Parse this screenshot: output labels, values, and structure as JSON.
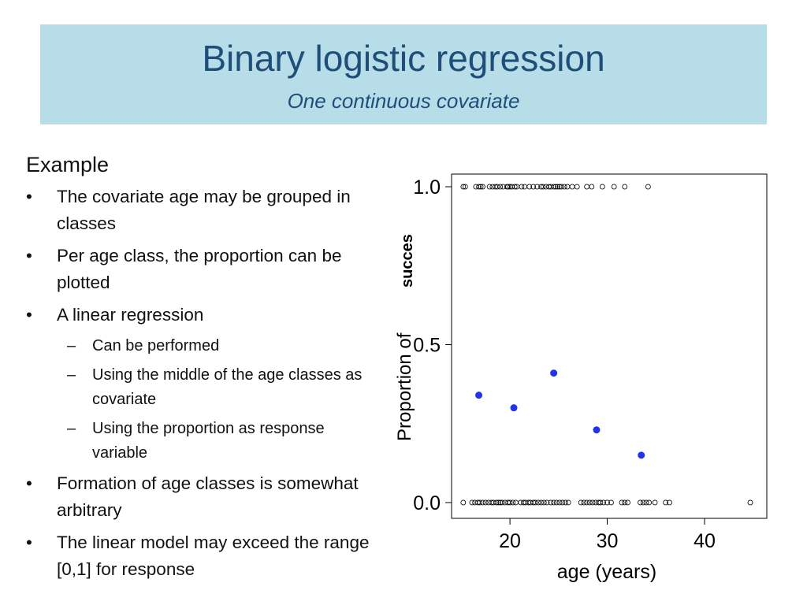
{
  "slide": {
    "title": "Binary logistic regression",
    "subtitle": "One continuous covariate",
    "heading": "Example",
    "bullets": [
      {
        "text": "The covariate age may be grouped in classes"
      },
      {
        "text": "Per age class, the proportion can be plotted"
      },
      {
        "text": "A linear regression",
        "subs": [
          "Can be performed",
          "Using the middle of the age classes as covariate",
          "Using the proportion as response variable"
        ]
      },
      {
        "text": "Formation of age classes is somewhat arbitrary"
      },
      {
        "text": "The linear model may exceed the range [0,1] for response"
      }
    ]
  },
  "chart_data": {
    "type": "scatter",
    "xlabel": "age (years)",
    "ylabel_plain": "Proportion of",
    "ylabel_bold": "succes",
    "xticks": [
      20,
      30,
      40
    ],
    "yticks": [
      "0.0",
      "0.5",
      "1.0"
    ],
    "xlim": [
      14,
      46.4
    ],
    "ylim": [
      -0.05,
      1.04
    ],
    "series": [
      {
        "kind": "outcome_points",
        "points_y1": [
          15.2,
          15.4,
          16.5,
          16.8,
          17.0,
          17.2,
          17.9,
          18.2,
          18.5,
          18.7,
          19.0,
          19.3,
          19.7,
          19.8,
          20.0,
          20.2,
          20.5,
          20.7,
          21.2,
          21.5,
          22.0,
          22.4,
          22.8,
          23.2,
          23.4,
          23.7,
          24.0,
          24.2,
          24.5,
          24.7,
          24.9,
          25.1,
          25.3,
          25.6,
          25.9,
          26.4,
          26.9,
          27.9,
          28.4,
          29.5,
          30.7,
          31.8,
          34.2
        ],
        "points_y0": [
          15.2,
          16.1,
          16.4,
          16.7,
          16.9,
          17.2,
          17.5,
          17.8,
          18.1,
          18.3,
          18.6,
          18.8,
          19.0,
          19.2,
          19.5,
          19.8,
          20.0,
          20.3,
          20.6,
          21.1,
          21.4,
          21.6,
          21.9,
          22.1,
          22.4,
          22.6,
          22.9,
          23.2,
          23.5,
          23.8,
          24.2,
          24.5,
          24.8,
          25.1,
          25.4,
          25.7,
          26.0,
          27.3,
          27.6,
          27.9,
          28.2,
          28.5,
          28.8,
          29.1,
          29.3,
          29.6,
          30.0,
          30.4,
          31.5,
          31.8,
          32.1,
          33.4,
          33.7,
          34.0,
          34.3,
          34.9,
          36.0,
          36.4,
          44.7
        ]
      },
      {
        "kind": "class_proportions",
        "points": [
          {
            "x": 16.8,
            "y": 0.34
          },
          {
            "x": 20.4,
            "y": 0.3
          },
          {
            "x": 24.5,
            "y": 0.41
          },
          {
            "x": 28.9,
            "y": 0.23
          },
          {
            "x": 33.5,
            "y": 0.15
          }
        ]
      }
    ],
    "colors": {
      "proportion": "#2233ee",
      "outcome": "#000000"
    }
  }
}
